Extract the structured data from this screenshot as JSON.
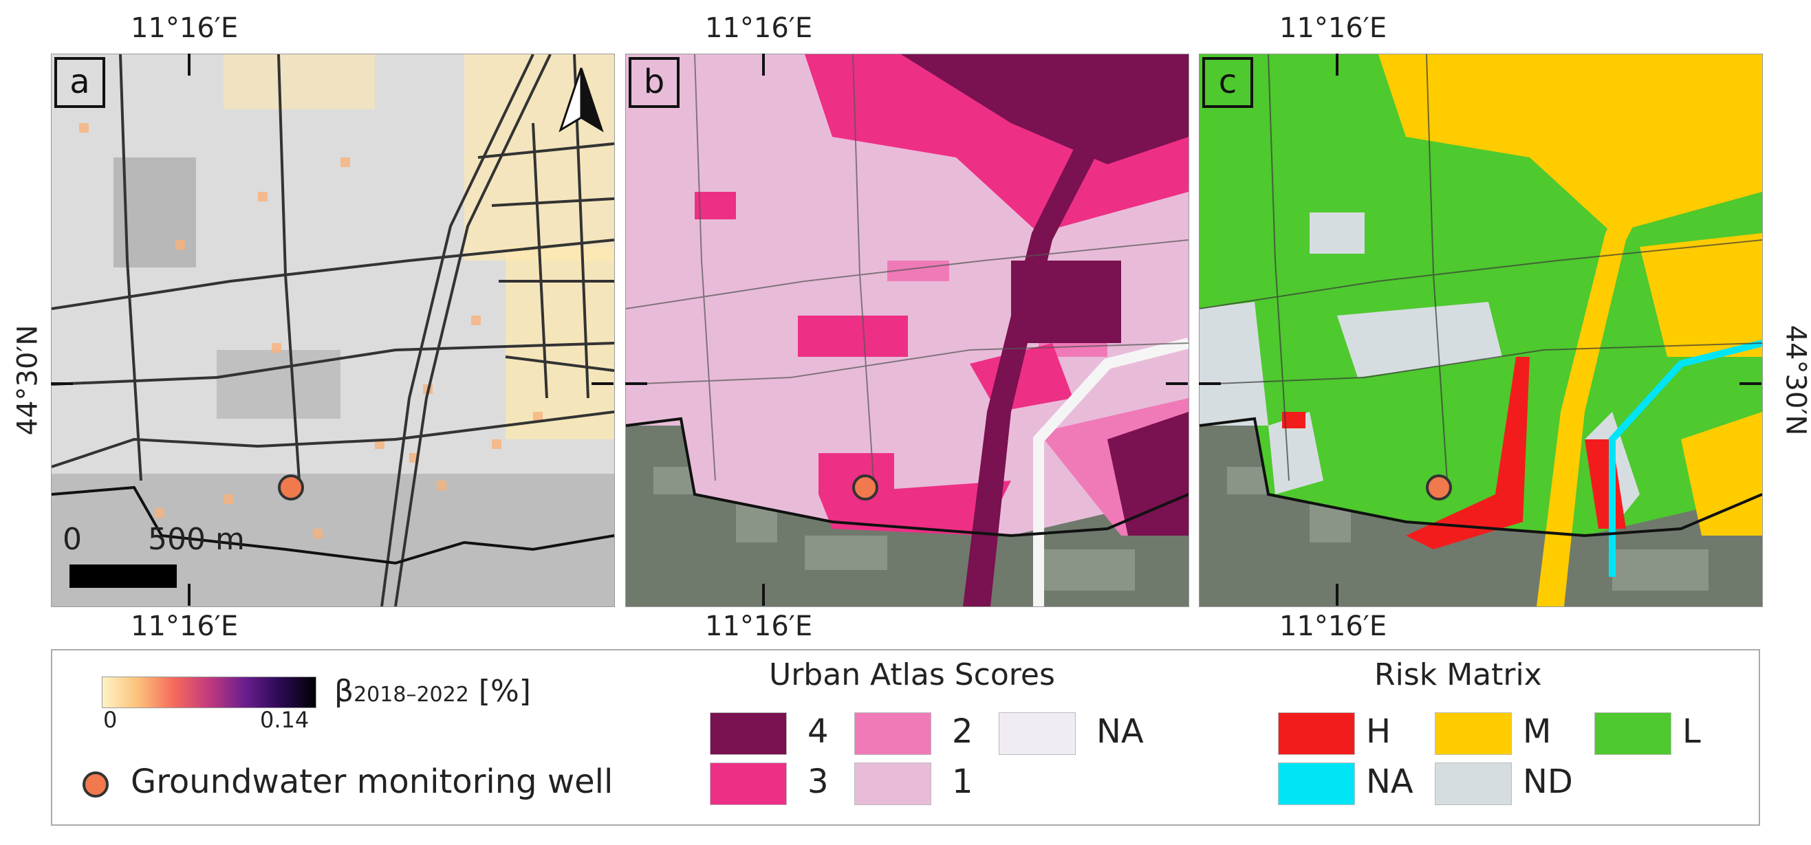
{
  "coordinates": {
    "lon_label": "11°16′E",
    "lat_label": "44°30′N"
  },
  "panels": [
    {
      "id": "a",
      "label": "a",
      "basemap": "grey street map",
      "colors": {
        "background": "#dcdcdc",
        "roads": "#333333",
        "high_beta": "#f8b27a",
        "low_beta": "#fde8b0"
      }
    },
    {
      "id": "b",
      "label": "b",
      "basemap": "satellite",
      "colors": {
        "score1": "#e8bcd9",
        "score2": "#f07ab8",
        "score3": "#ee2f86",
        "score4": "#7a1150"
      }
    },
    {
      "id": "c",
      "label": "c",
      "basemap": "satellite",
      "colors": {
        "H": "#f31c1c",
        "M": "#ffcc00",
        "L": "#4ec92e",
        "NA": "#00e5f5",
        "ND": "#d6dde0"
      }
    }
  ],
  "map_elements": {
    "north_arrow": "north-arrow-icon",
    "scalebar": {
      "start": "0",
      "end": "500 m"
    },
    "well_color": "#f07a4d"
  },
  "legend": {
    "beta": {
      "label": "β",
      "subscript": "2018–2022",
      "unit": "[%]",
      "min": "0",
      "max": "0.14",
      "colormap": [
        "#fdf3c4",
        "#fcc17a",
        "#f66b5c",
        "#c13a7d",
        "#6a1e8f",
        "#2b0a52",
        "#000004"
      ]
    },
    "well": {
      "label": "Groundwater monitoring well",
      "color": "#f07a4d"
    },
    "urban_atlas": {
      "title": "Urban Atlas Scores",
      "items": [
        {
          "label": "4",
          "color": "#7a1150"
        },
        {
          "label": "2",
          "color": "#f07ab8"
        },
        {
          "label": "NA",
          "color": "#f1ecf4"
        },
        {
          "label": "3",
          "color": "#ee2f86"
        },
        {
          "label": "1",
          "color": "#e8bcd9"
        }
      ]
    },
    "risk_matrix": {
      "title": "Risk Matrix",
      "items": [
        {
          "label": "H",
          "color": "#f31c1c"
        },
        {
          "label": "M",
          "color": "#ffcc00"
        },
        {
          "label": "L",
          "color": "#4ec92e"
        },
        {
          "label": "NA",
          "color": "#00e5f5"
        },
        {
          "label": "ND",
          "color": "#d6dde0"
        }
      ]
    }
  }
}
